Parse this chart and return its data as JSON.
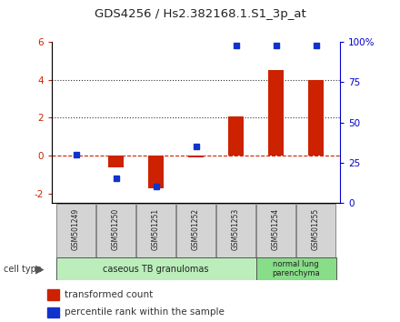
{
  "title": "GDS4256 / Hs2.382168.1.S1_3p_at",
  "samples": [
    "GSM501249",
    "GSM501250",
    "GSM501251",
    "GSM501252",
    "GSM501253",
    "GSM501254",
    "GSM501255"
  ],
  "transformed_count": [
    0.0,
    -0.65,
    -1.75,
    -0.1,
    2.05,
    4.5,
    4.0
  ],
  "percentile_rank": [
    30,
    15,
    10,
    35,
    98,
    98,
    98
  ],
  "ylim_left": [
    -2.5,
    6.0
  ],
  "ylim_right": [
    0,
    100
  ],
  "yticks_left": [
    -2,
    0,
    2,
    4,
    6
  ],
  "yticks_right": [
    0,
    25,
    50,
    75,
    100
  ],
  "ytick_labels_right": [
    "0",
    "25",
    "50",
    "75",
    "100%"
  ],
  "bar_color": "#cc2200",
  "dot_color": "#1133cc",
  "dashed_line_color": "#cc2200",
  "dotted_line_color": "#333333",
  "group1_label": "caseous TB granulomas",
  "group2_label": "normal lung\nparenchyma",
  "group1_indices": [
    0,
    1,
    2,
    3,
    4
  ],
  "group2_indices": [
    5,
    6
  ],
  "group1_color": "#bbeebb",
  "group2_color": "#88dd88",
  "cell_type_label": "cell type",
  "legend_red": "transformed count",
  "legend_blue": "percentile rank within the sample",
  "background_color": "#ffffff"
}
